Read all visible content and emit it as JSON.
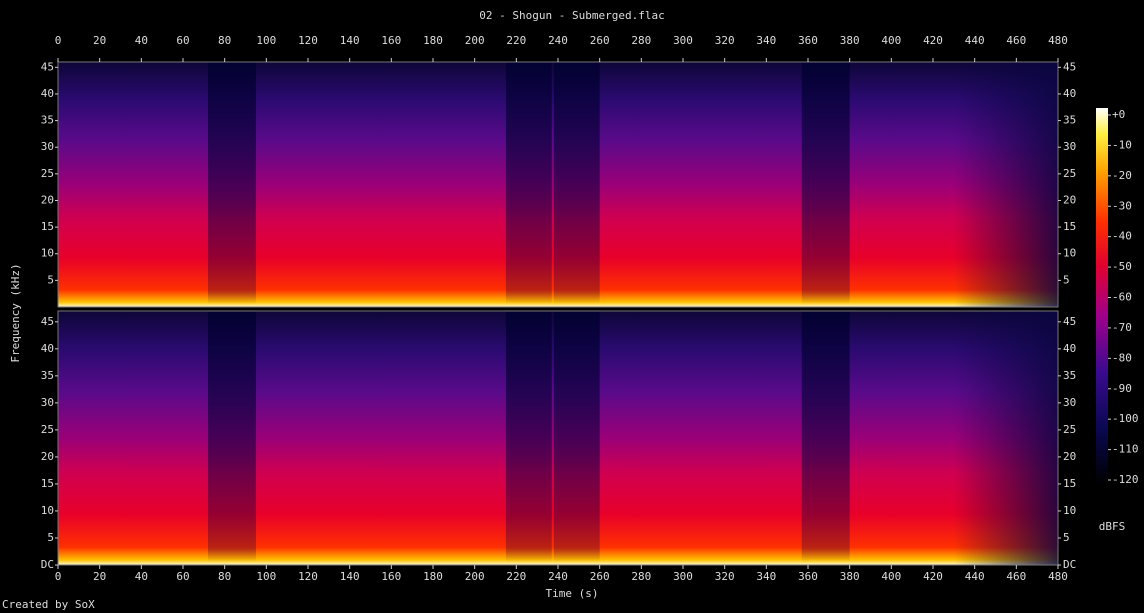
{
  "chart_data": {
    "type": "spectrogram",
    "title": "02 - Shogun - Submerged.flac",
    "xlabel": "Time (s)",
    "ylabel": "Frequency (kHz)",
    "xlim": [
      0,
      480
    ],
    "xticks": [
      0,
      20,
      40,
      60,
      80,
      100,
      120,
      140,
      160,
      180,
      200,
      220,
      240,
      260,
      280,
      300,
      320,
      340,
      360,
      380,
      400,
      420,
      440,
      460,
      480
    ],
    "channels": [
      {
        "ylim": [
          0,
          46
        ],
        "yticks": [
          5,
          10,
          15,
          20,
          25,
          30,
          35,
          40,
          45
        ]
      },
      {
        "ylim": [
          0,
          47
        ],
        "yticks": [
          {
            "value": 0,
            "label": "DC"
          },
          5,
          10,
          15,
          20,
          25,
          30,
          35,
          40,
          45
        ]
      }
    ],
    "colorbar": {
      "label": "dBFS",
      "lim": [
        -120,
        0
      ],
      "ticks": [
        {
          "value": 0,
          "label": "+0"
        },
        -10,
        -20,
        -30,
        -40,
        -50,
        -60,
        -70,
        -80,
        -90,
        -100,
        -110,
        -120
      ]
    },
    "footer": "Created by SoX"
  }
}
